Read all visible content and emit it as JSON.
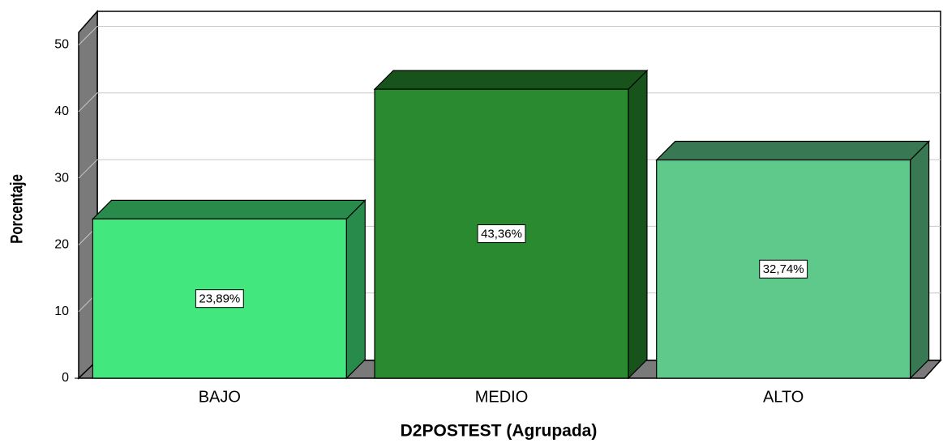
{
  "chart_data": {
    "type": "bar3d",
    "xlabel": "D2POSTEST (Agrupada)",
    "ylabel": "Porcentaje",
    "categories": [
      "BAJO",
      "MEDIO",
      "ALTO"
    ],
    "values": [
      23.89,
      43.36,
      32.74
    ],
    "value_labels": [
      "23,89%",
      "43,36%",
      "32,74%"
    ],
    "colors": [
      "#42e87d",
      "#2a8a2f",
      "#5ec98a"
    ],
    "ylim": [
      0,
      52
    ],
    "yticks": [
      0,
      10,
      20,
      30,
      40,
      50
    ],
    "grid": true
  }
}
